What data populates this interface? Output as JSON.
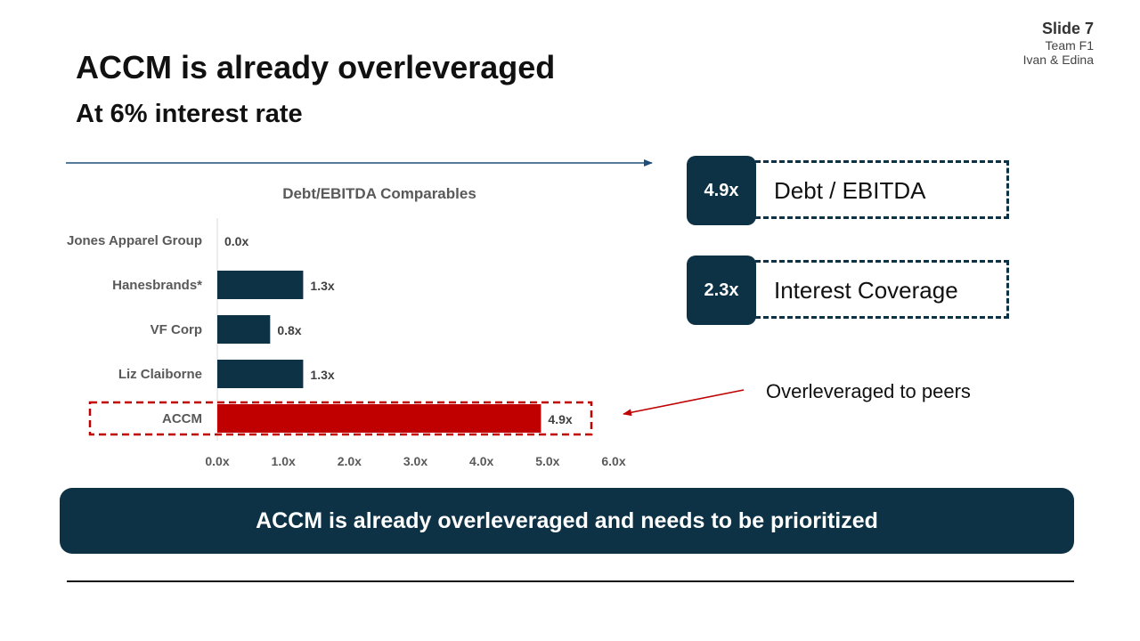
{
  "slide": {
    "number": "Slide 7",
    "team": "Team F1",
    "authors": "Ivan & Edina"
  },
  "title": "ACCM is already overleveraged",
  "subtitle": "At 6% interest rate",
  "kpis": [
    {
      "value": "4.9x",
      "label": "Debt / EBITDA"
    },
    {
      "value": "2.3x",
      "label": "Interest Coverage"
    }
  ],
  "callout": "Overleveraged to peers",
  "banner": "ACCM is already overleveraged and needs to be prioritized",
  "colors": {
    "navy": "#0e3245",
    "highlight": "#c00000",
    "arrow": "#1f4e79",
    "axis_text": "#595959"
  },
  "chart_data": {
    "type": "bar",
    "orientation": "horizontal",
    "title": "Debt/EBITDA Comparables",
    "categories": [
      "Jones Apparel Group",
      "Hanesbrands*",
      "VF Corp",
      "Liz Claiborne",
      "ACCM"
    ],
    "values": [
      0.0,
      1.3,
      0.8,
      1.3,
      4.9
    ],
    "data_labels": [
      "0.0x",
      "1.3x",
      "0.8x",
      "1.3x",
      "4.9x"
    ],
    "highlighted_category": "ACCM",
    "xlim": [
      0,
      6
    ],
    "x_ticks": [
      0,
      1,
      2,
      3,
      4,
      5,
      6
    ],
    "x_tick_labels": [
      "0.0x",
      "1.0x",
      "2.0x",
      "3.0x",
      "4.0x",
      "5.0x",
      "6.0x"
    ],
    "grid": false,
    "legend": "none"
  }
}
